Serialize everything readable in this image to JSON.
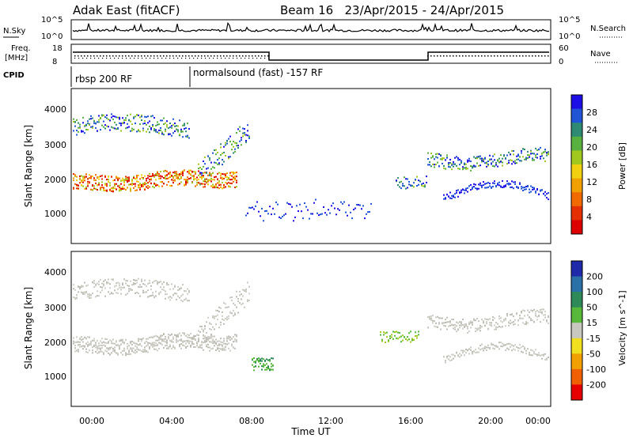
{
  "header": {
    "title_left": "Adak East (fitACF)",
    "title_right": "Beam 16   23/Apr/2015 - 24/Apr/2015"
  },
  "summary": {
    "nsky_label": "N.Sky",
    "nsearch_label": "N.Search",
    "nsky_ticks": [
      "10^5",
      "10^0"
    ],
    "nsearch_ticks": [
      "10^5",
      "10^0"
    ],
    "freq_label_1": "Freq.",
    "freq_label_2": "[MHz]",
    "freq_ticks": [
      "18",
      "8"
    ],
    "nave_label": "Nave",
    "nave_ticks": [
      "60",
      "0"
    ],
    "cpid_label": "CPID",
    "cpid_1": "rbsp 200 RF",
    "cpid_2": "normalsound (fast) -157 RF"
  },
  "chart_data": [
    {
      "type": "heatmap",
      "title": "",
      "xlabel": "",
      "ylabel": "Slant Range [km]",
      "yticks": [
        "1000",
        "2000",
        "3000",
        "4000"
      ],
      "colorbar_label": "Power [dB]",
      "colorbar_ticks": [
        "4",
        "8",
        "12",
        "16",
        "20",
        "24",
        "28"
      ],
      "colorbar_colors": [
        "#1e0ee6",
        "#2255d6",
        "#2e8a72",
        "#58b03e",
        "#a0c81e",
        "#f0d010",
        "#f0a000",
        "#f06a00",
        "#e43000",
        "#dc0000"
      ]
    },
    {
      "type": "heatmap",
      "title": "",
      "xlabel": "Time UT",
      "ylabel": "Slant Range [km]",
      "yticks": [
        "1000",
        "2000",
        "3000",
        "4000"
      ],
      "xticks": [
        "00:00",
        "04:00",
        "08:00",
        "12:00",
        "16:00",
        "20:00",
        "00:00"
      ],
      "colorbar_label": "Velocity [m s^-1]",
      "colorbar_ticks": [
        "200",
        "100",
        "50",
        "15",
        "-15",
        "-50",
        "-100",
        "-200"
      ],
      "colorbar_colors": [
        "#1f2aa8",
        "#2c70a8",
        "#2f8a5a",
        "#58b83a",
        "#c8c8c0",
        "#f0e020",
        "#f0a000",
        "#f06000",
        "#e60000"
      ]
    }
  ]
}
